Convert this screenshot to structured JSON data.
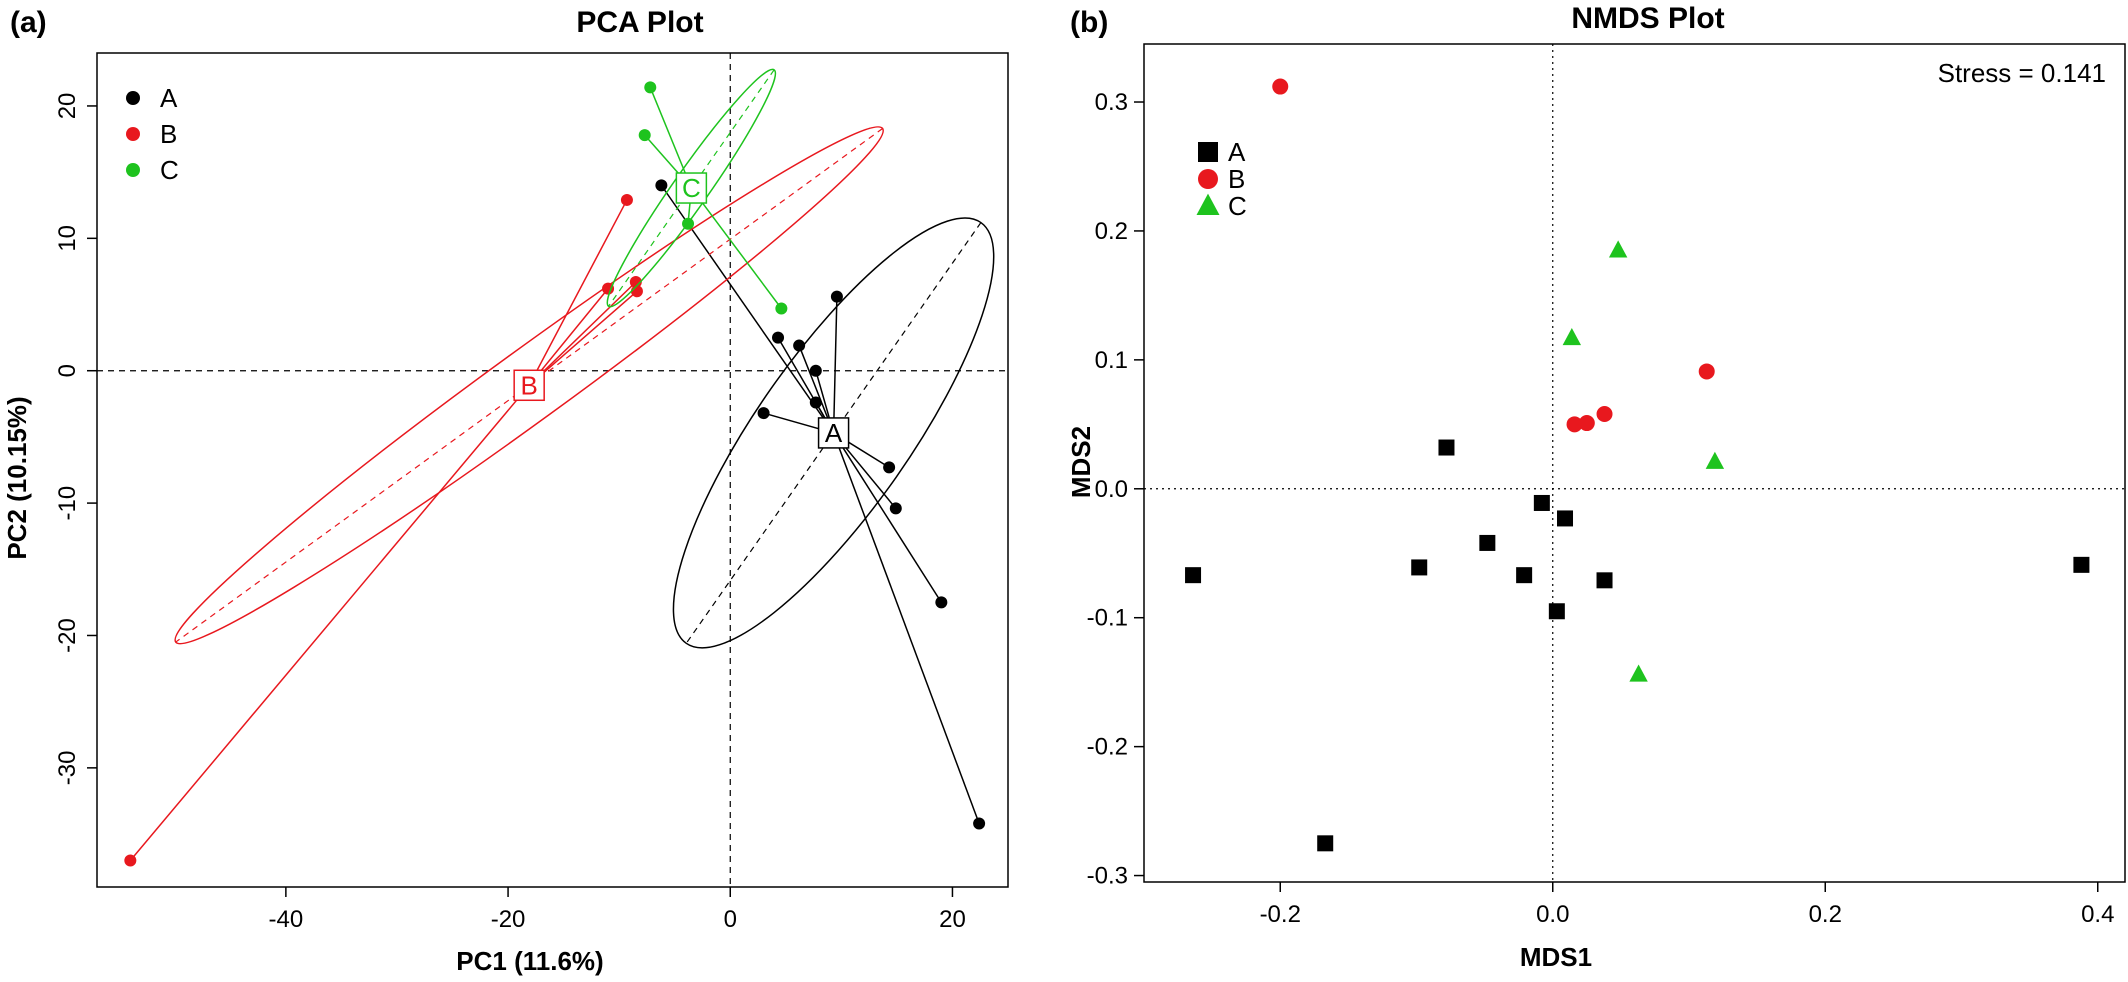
{
  "chart_data": [
    {
      "panel": "(a)",
      "type": "scatter",
      "title": "PCA Plot",
      "xlabel": "PC1 (11.6%)",
      "ylabel": "PC2 (10.15%)",
      "xlim": [
        -57,
        25
      ],
      "ylim": [
        -39,
        24
      ],
      "xticks": [
        -40,
        -20,
        0,
        20
      ],
      "yticks": [
        -30,
        -20,
        -10,
        0,
        10,
        20
      ],
      "grid": false,
      "legend_position": "top-left",
      "reference_lines": {
        "x": 0,
        "y": 0
      },
      "series": [
        {
          "name": "A",
          "color": "#000000",
          "centroid": [
            9.3,
            -4.7
          ],
          "centroid_label": "A",
          "ellipse": {
            "center": [
              9.3,
              -4.7
            ],
            "rx": 6.9,
            "ry": 19.4,
            "angle_deg": 35
          },
          "points": [
            [
              -6.2,
              14.0
            ],
            [
              4.3,
              2.5
            ],
            [
              6.2,
              1.9
            ],
            [
              7.7,
              0.0
            ],
            [
              7.7,
              -2.4
            ],
            [
              9.6,
              5.6
            ],
            [
              3.0,
              -3.2
            ],
            [
              14.3,
              -7.3
            ],
            [
              14.9,
              -10.4
            ],
            [
              19.0,
              -17.5
            ],
            [
              22.4,
              -34.2
            ]
          ]
        },
        {
          "name": "B",
          "color": "#e8181e",
          "centroid": [
            -18.1,
            -1.1
          ],
          "centroid_label": "B",
          "ellipse": {
            "center": [
              -18.1,
              -1.1
            ],
            "rx": 3.2,
            "ry": 33.0,
            "angle_deg": 54
          },
          "points": [
            [
              -9.3,
              12.9
            ],
            [
              -8.5,
              6.7
            ],
            [
              -8.4,
              6.0
            ],
            [
              -11.0,
              6.2
            ],
            [
              -54.0,
              -37.0
            ]
          ]
        },
        {
          "name": "C",
          "color": "#1ec31e",
          "centroid": [
            -3.5,
            13.8
          ],
          "centroid_label": "C",
          "ellipse": {
            "center": [
              -3.5,
              13.8
            ],
            "rx": 1.6,
            "ry": 10.9,
            "angle_deg": 35
          },
          "points": [
            [
              -7.2,
              21.4
            ],
            [
              -7.7,
              17.8
            ],
            [
              -3.8,
              11.1
            ],
            [
              4.6,
              4.7
            ]
          ]
        }
      ]
    },
    {
      "panel": "(b)",
      "type": "scatter",
      "title": "NMDS Plot",
      "xlabel": "MDS1",
      "ylabel": "MDS2",
      "xlim": [
        -0.3,
        0.42
      ],
      "ylim": [
        -0.305,
        0.345
      ],
      "xticks": [
        "-0.2",
        "0.0",
        "0.2",
        "0.4"
      ],
      "yticks": [
        "-0.3",
        "-0.2",
        "-0.1",
        "0.0",
        "0.1",
        "0.2",
        "0.3"
      ],
      "xtick_values": [
        -0.2,
        0.0,
        0.2,
        0.4
      ],
      "ytick_values": [
        -0.3,
        -0.2,
        -0.1,
        0.0,
        0.1,
        0.2,
        0.3
      ],
      "grid": false,
      "legend_position": "top-left",
      "annotation": "Stress = 0.141",
      "reference_lines": {
        "x": 0,
        "y": 0
      },
      "series": [
        {
          "name": "A",
          "color": "#000000",
          "marker": "square",
          "points": [
            [
              -0.264,
              -0.067
            ],
            [
              -0.167,
              -0.275
            ],
            [
              -0.098,
              -0.061
            ],
            [
              -0.078,
              0.032
            ],
            [
              -0.048,
              -0.042
            ],
            [
              -0.021,
              -0.067
            ],
            [
              -0.008,
              -0.011
            ],
            [
              0.003,
              -0.095
            ],
            [
              0.009,
              -0.023
            ],
            [
              0.038,
              -0.071
            ],
            [
              0.388,
              -0.059
            ]
          ]
        },
        {
          "name": "B",
          "color": "#e8181e",
          "marker": "circle",
          "points": [
            [
              -0.2,
              0.312
            ],
            [
              0.016,
              0.05
            ],
            [
              0.025,
              0.051
            ],
            [
              0.038,
              0.058
            ],
            [
              0.113,
              0.091
            ]
          ]
        },
        {
          "name": "C",
          "color": "#1ec31e",
          "marker": "triangle",
          "points": [
            [
              0.014,
              0.117
            ],
            [
              0.048,
              0.185
            ],
            [
              0.063,
              -0.144
            ],
            [
              0.119,
              0.021
            ]
          ]
        }
      ]
    }
  ]
}
